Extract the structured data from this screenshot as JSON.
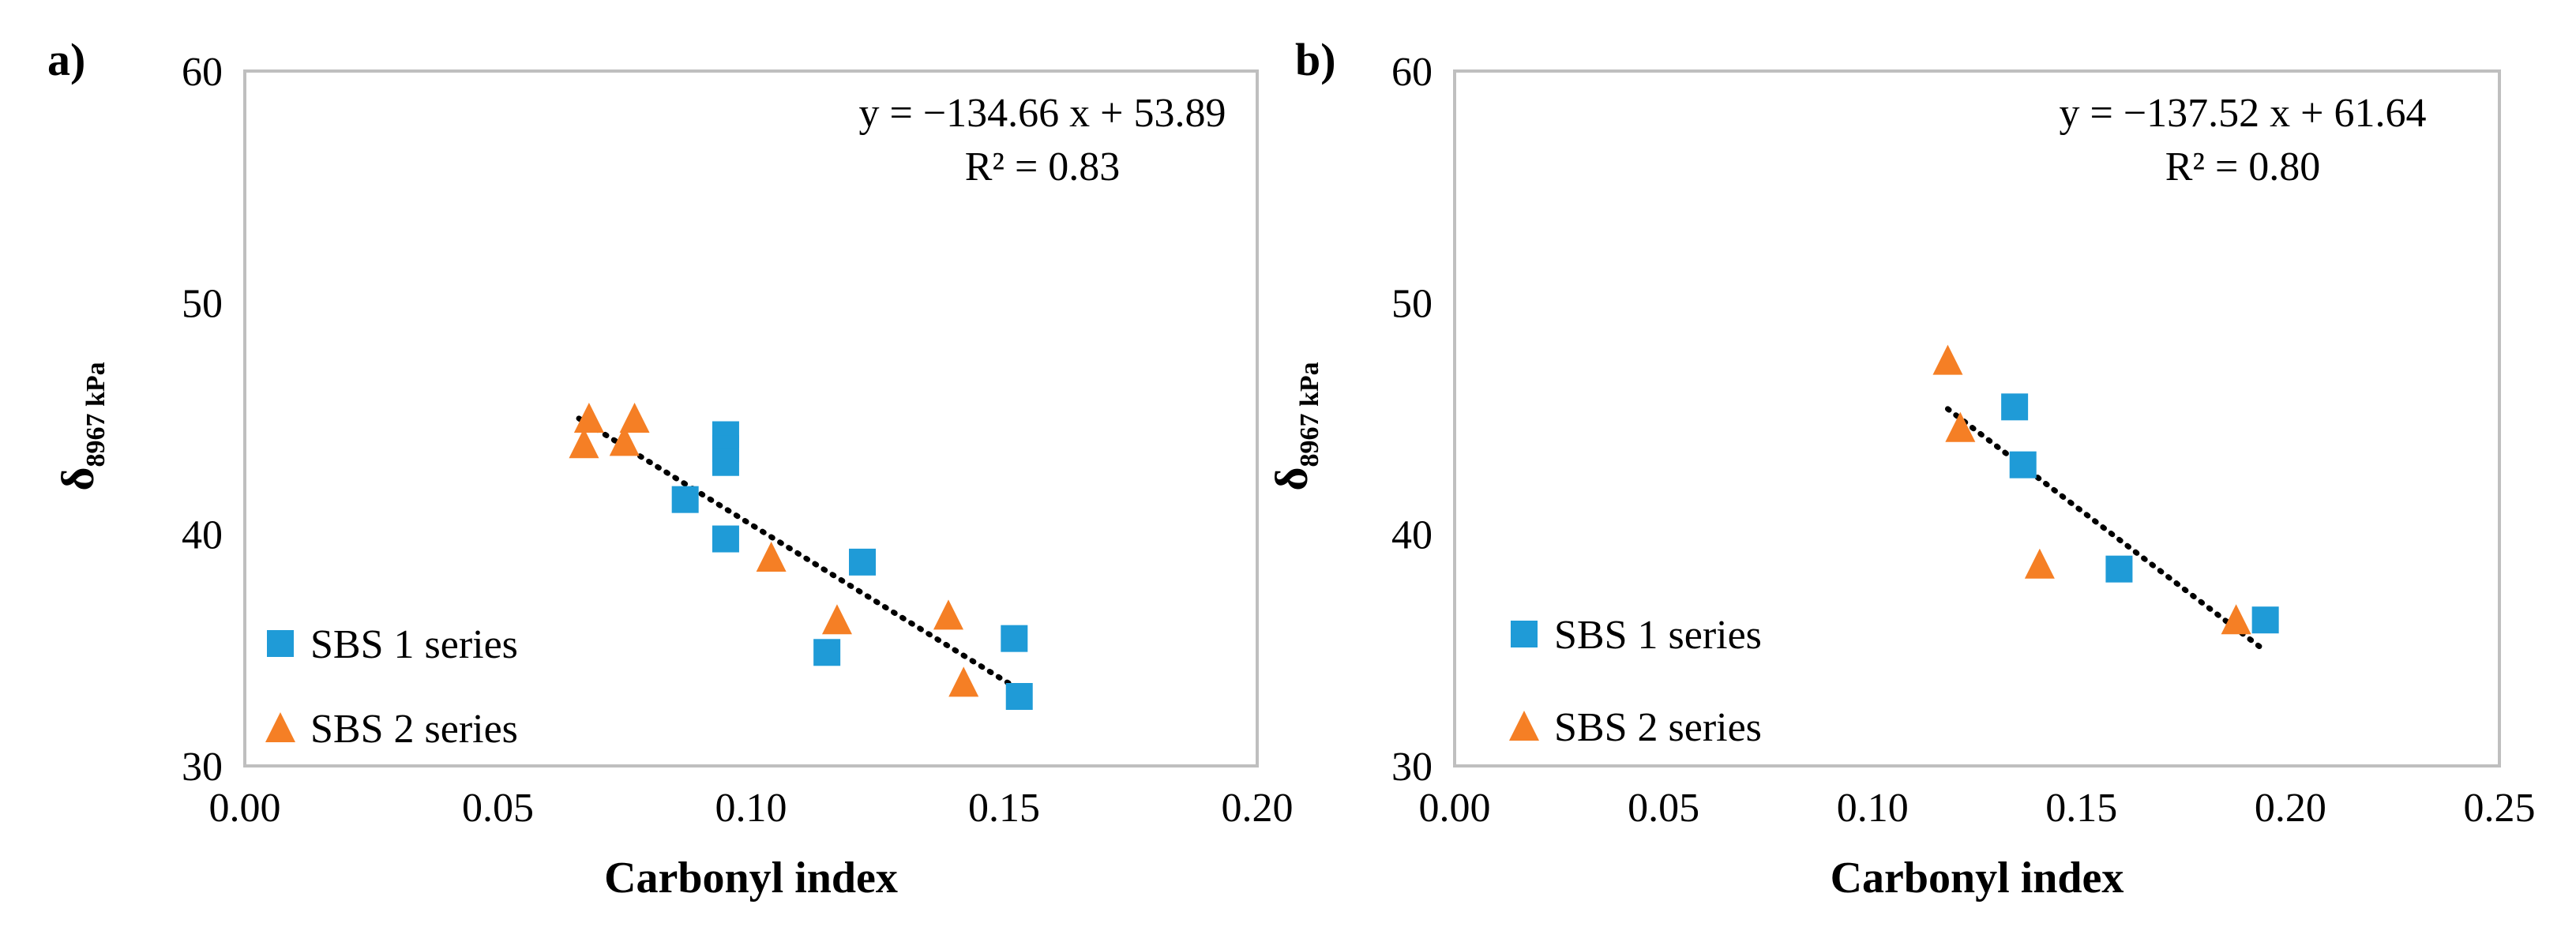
{
  "colors": {
    "series1": "#1f9bd7",
    "series2": "#f57f25",
    "trendline": "#000000",
    "frame": "#bfbfbf"
  },
  "chart_data": [
    {
      "type": "scatter",
      "panel_label": "a)",
      "xlabel": "Carbonyl index",
      "ylabel": "δ",
      "ylabel_subscript": "8967 kPa",
      "xlim": [
        0,
        0.2
      ],
      "ylim": [
        30,
        60
      ],
      "xticks": [
        0,
        0.05,
        0.1,
        0.15,
        0.2
      ],
      "xtick_labels": [
        "0.00",
        "0.05",
        "0.10",
        "0.15",
        "0.20"
      ],
      "yticks": [
        30,
        40,
        50,
        60
      ],
      "ytick_labels": [
        "30",
        "40",
        "50",
        "60"
      ],
      "grid": false,
      "legend_position": "bottom-left",
      "equation": "y = −134.66 x + 53.89",
      "r_squared": "R² = 0.83",
      "trendline": {
        "slope": -134.66,
        "intercept": 53.89,
        "x_range": [
          0.066,
          0.154
        ]
      },
      "series": [
        {
          "name": "SBS 1 series",
          "marker": "square",
          "color_key": "series1",
          "x": [
            0.095,
            0.095,
            0.095,
            0.087,
            0.095,
            0.122,
            0.115,
            0.152,
            0.153
          ],
          "y": [
            44.3,
            43.7,
            43.1,
            41.5,
            39.8,
            38.8,
            34.9,
            35.5,
            33.0
          ]
        },
        {
          "name": "SBS 2 series",
          "marker": "triangle",
          "color_key": "series2",
          "x": [
            0.068,
            0.067,
            0.077,
            0.075,
            0.104,
            0.117,
            0.139,
            0.142
          ],
          "y": [
            45.0,
            43.9,
            45.0,
            44.0,
            39.0,
            36.3,
            36.5,
            33.6
          ]
        }
      ]
    },
    {
      "type": "scatter",
      "panel_label": "b)",
      "xlabel": "Carbonyl index",
      "ylabel": "δ",
      "ylabel_subscript": "8967 kPa",
      "xlim": [
        0,
        0.25
      ],
      "ylim": [
        30,
        60
      ],
      "xticks": [
        0,
        0.05,
        0.1,
        0.15,
        0.2,
        0.25
      ],
      "xtick_labels": [
        "0.00",
        "0.05",
        "0.10",
        "0.15",
        "0.20",
        "0.25"
      ],
      "yticks": [
        30,
        40,
        50,
        60
      ],
      "ytick_labels": [
        "30",
        "40",
        "50",
        "60"
      ],
      "grid": false,
      "legend_position": "bottom-left",
      "equation": "y = −137.52 x + 61.64",
      "r_squared": "R² = 0.80",
      "trendline": {
        "slope": -137.52,
        "intercept": 61.64,
        "x_range": [
          0.118,
          0.193
        ]
      },
      "series": [
        {
          "name": "SBS 1 series",
          "marker": "square",
          "color_key": "series1",
          "x": [
            0.134,
            0.136,
            0.159,
            0.194
          ],
          "y": [
            45.5,
            43.0,
            38.5,
            36.3
          ]
        },
        {
          "name": "SBS 2 series",
          "marker": "triangle",
          "color_key": "series2",
          "x": [
            0.118,
            0.121,
            0.14,
            0.187
          ],
          "y": [
            47.5,
            44.6,
            38.7,
            36.3
          ]
        }
      ]
    }
  ]
}
